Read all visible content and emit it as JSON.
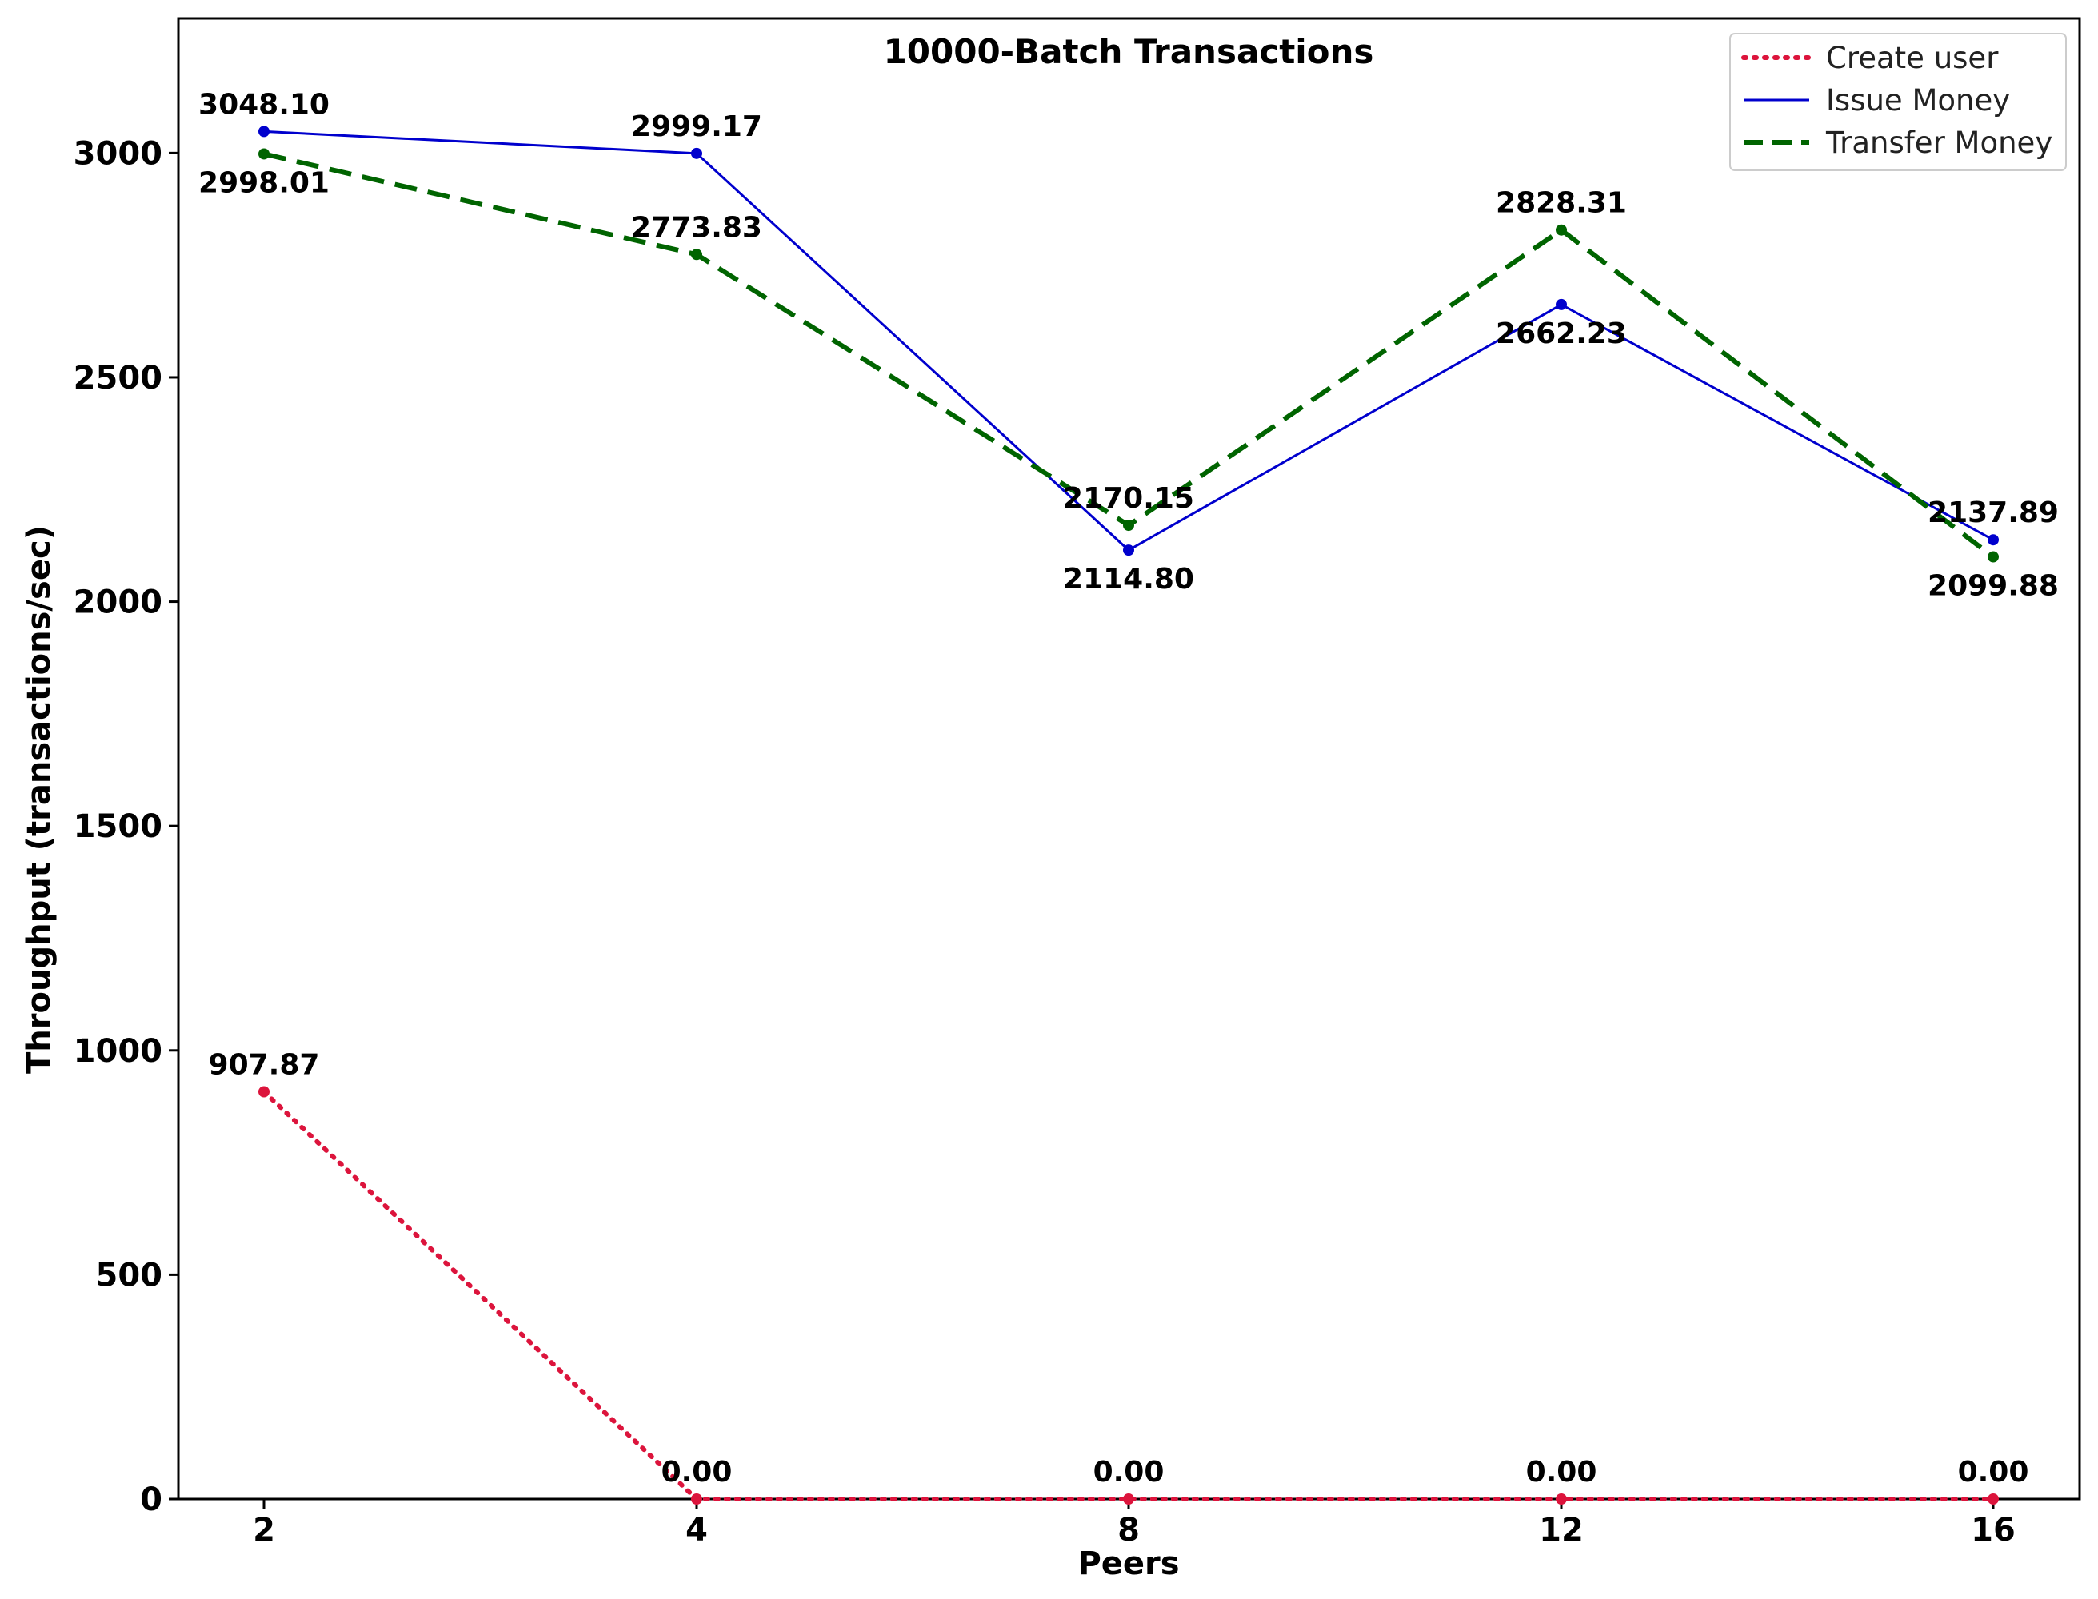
{
  "chart_data": {
    "type": "line",
    "title": "10000-Batch Transactions",
    "xlabel": "Peers",
    "ylabel": "Throughput (transactions/sec)",
    "categories": [
      "2",
      "4",
      "8",
      "12",
      "16"
    ],
    "ylim": [
      0,
      3300
    ],
    "yticks": [
      0,
      500,
      1000,
      1500,
      2000,
      2500,
      3000
    ],
    "ytick_labels": [
      "0",
      "500",
      "1000",
      "1500",
      "2000",
      "2500",
      "3000"
    ],
    "legend_position": "top-right",
    "series": [
      {
        "name": "Create user",
        "color": "#dc143c",
        "style": "dotted",
        "values": [
          907.87,
          0.0,
          0.0,
          0.0,
          0.0
        ],
        "labels": [
          "907.87",
          "0.00",
          "0.00",
          "0.00",
          "0.00"
        ]
      },
      {
        "name": "Issue Money",
        "color": "#0000cd",
        "style": "solid",
        "values": [
          3048.1,
          2999.17,
          2114.8,
          2662.23,
          2137.89
        ],
        "labels": [
          "3048.10",
          "2999.17",
          "2114.80",
          "2662.23",
          "2137.89"
        ]
      },
      {
        "name": "Transfer Money",
        "color": "#006400",
        "style": "dashed",
        "values": [
          2998.01,
          2773.83,
          2170.15,
          2828.31,
          2099.88
        ],
        "labels": [
          "2998.01",
          "2773.83",
          "2170.15",
          "2828.31",
          "2099.88"
        ]
      }
    ]
  }
}
